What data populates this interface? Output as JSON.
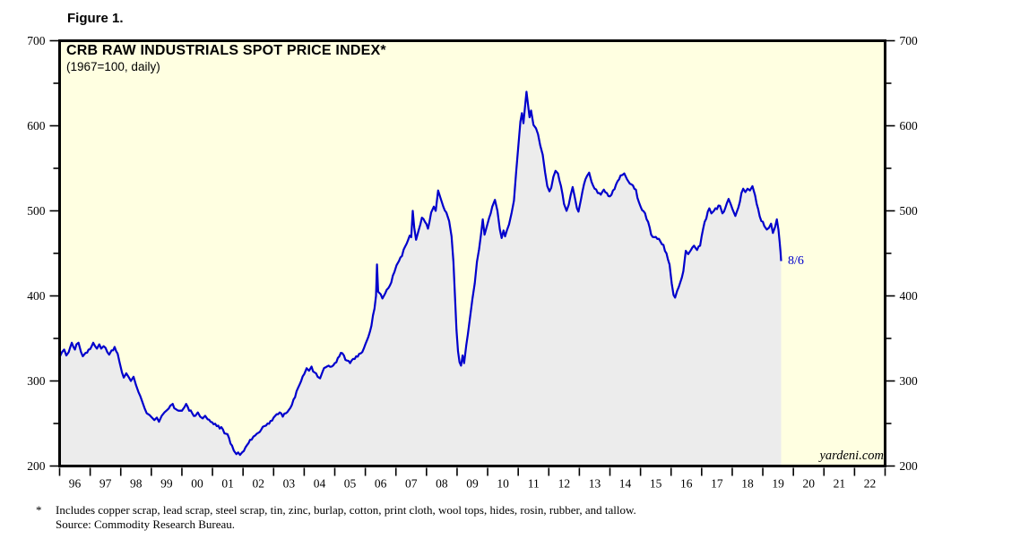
{
  "figure_label": "Figure 1.",
  "chart": {
    "title": "CRB RAW INDUSTRIALS SPOT PRICE INDEX*",
    "subtitle": "(1967=100, daily)",
    "watermark": "yardeni.com",
    "end_label": "8/6",
    "colors": {
      "plot_background": "#FFFFE1",
      "area_fill": "#ECECEC",
      "line": "#0000CC",
      "axis": "#000000",
      "end_label": "#0000CC"
    }
  },
  "footnote": {
    "marker": "*",
    "line1": "Includes copper scrap, lead scrap, steel scrap, tin, zinc, burlap, cotton, print cloth, wool tops, hides, rosin, rubber, and tallow.",
    "line2": "Source: Commodity Research Bureau."
  },
  "chart_data": {
    "type": "area",
    "title": "CRB RAW INDUSTRIALS SPOT PRICE INDEX*",
    "subtitle": "(1967=100, daily)",
    "xlabel": "",
    "ylabel": "",
    "ylim": [
      200,
      700
    ],
    "y_major_ticks": [
      200,
      300,
      400,
      500,
      600,
      700
    ],
    "y_minor_ticks": [
      250,
      350,
      450,
      550,
      650
    ],
    "x_range_years": [
      1996,
      2023
    ],
    "x_tick_labels": [
      "96",
      "97",
      "98",
      "99",
      "00",
      "01",
      "02",
      "03",
      "04",
      "05",
      "06",
      "07",
      "08",
      "09",
      "10",
      "11",
      "12",
      "13",
      "14",
      "15",
      "16",
      "17",
      "18",
      "19",
      "20",
      "21",
      "22"
    ],
    "grid": false,
    "legend": "none",
    "last_point_label": "8/6",
    "series": [
      {
        "name": "CRB Raw Industrials Spot Price Index",
        "points": [
          [
            1996.0,
            328
          ],
          [
            1996.08,
            334
          ],
          [
            1996.15,
            337
          ],
          [
            1996.22,
            330
          ],
          [
            1996.3,
            334
          ],
          [
            1996.4,
            345
          ],
          [
            1996.45,
            340
          ],
          [
            1996.5,
            337
          ],
          [
            1996.55,
            343
          ],
          [
            1996.62,
            345
          ],
          [
            1996.7,
            334
          ],
          [
            1996.76,
            329
          ],
          [
            1996.85,
            333
          ],
          [
            1996.95,
            337
          ],
          [
            1997.05,
            341
          ],
          [
            1997.1,
            345
          ],
          [
            1997.16,
            341
          ],
          [
            1997.22,
            338
          ],
          [
            1997.3,
            343
          ],
          [
            1997.36,
            338
          ],
          [
            1997.44,
            341
          ],
          [
            1997.5,
            339
          ],
          [
            1997.56,
            334
          ],
          [
            1997.62,
            331
          ],
          [
            1997.7,
            336
          ],
          [
            1997.8,
            340
          ],
          [
            1997.9,
            332
          ],
          [
            1997.96,
            322
          ],
          [
            1998.04,
            310
          ],
          [
            1998.1,
            304
          ],
          [
            1998.18,
            309
          ],
          [
            1998.27,
            304
          ],
          [
            1998.33,
            300
          ],
          [
            1998.42,
            305
          ],
          [
            1998.5,
            295
          ],
          [
            1998.58,
            287
          ],
          [
            1998.64,
            282
          ],
          [
            1998.7,
            276
          ],
          [
            1998.78,
            268
          ],
          [
            1998.85,
            262
          ],
          [
            1998.94,
            260
          ],
          [
            1999.02,
            257
          ],
          [
            1999.1,
            254
          ],
          [
            1999.18,
            257
          ],
          [
            1999.25,
            252
          ],
          [
            1999.34,
            259
          ],
          [
            1999.43,
            263
          ],
          [
            1999.52,
            266
          ],
          [
            1999.62,
            271
          ],
          [
            1999.7,
            273
          ],
          [
            1999.8,
            267
          ],
          [
            1999.9,
            265
          ],
          [
            2000.0,
            265
          ],
          [
            2000.08,
            269
          ],
          [
            2000.14,
            273
          ],
          [
            2000.24,
            265
          ],
          [
            2000.34,
            262
          ],
          [
            2000.44,
            259
          ],
          [
            2000.52,
            263
          ],
          [
            2000.6,
            258
          ],
          [
            2000.68,
            256
          ],
          [
            2000.76,
            259
          ],
          [
            2000.84,
            255
          ],
          [
            2000.94,
            252
          ],
          [
            2001.04,
            249
          ],
          [
            2001.14,
            247
          ],
          [
            2001.24,
            244
          ],
          [
            2001.34,
            243
          ],
          [
            2001.44,
            238
          ],
          [
            2001.54,
            233
          ],
          [
            2001.64,
            224
          ],
          [
            2001.7,
            218
          ],
          [
            2001.78,
            214
          ],
          [
            2001.84,
            216
          ],
          [
            2001.9,
            213
          ],
          [
            2001.97,
            216
          ],
          [
            2002.08,
            222
          ],
          [
            2002.18,
            227
          ],
          [
            2002.28,
            231
          ],
          [
            2002.4,
            236
          ],
          [
            2002.5,
            239
          ],
          [
            2002.6,
            243
          ],
          [
            2002.7,
            247
          ],
          [
            2002.8,
            250
          ],
          [
            2002.9,
            253
          ],
          [
            2003.0,
            257
          ],
          [
            2003.1,
            261
          ],
          [
            2003.2,
            263
          ],
          [
            2003.3,
            258
          ],
          [
            2003.4,
            262
          ],
          [
            2003.5,
            266
          ],
          [
            2003.6,
            272
          ],
          [
            2003.7,
            281
          ],
          [
            2003.8,
            292
          ],
          [
            2003.9,
            300
          ],
          [
            2004.0,
            308
          ],
          [
            2004.08,
            315
          ],
          [
            2004.16,
            312
          ],
          [
            2004.24,
            317
          ],
          [
            2004.34,
            310
          ],
          [
            2004.44,
            305
          ],
          [
            2004.52,
            303
          ],
          [
            2004.6,
            311
          ],
          [
            2004.7,
            316
          ],
          [
            2004.8,
            318
          ],
          [
            2004.9,
            317
          ],
          [
            2005.0,
            321
          ],
          [
            2005.1,
            327
          ],
          [
            2005.2,
            333
          ],
          [
            2005.3,
            330
          ],
          [
            2005.4,
            324
          ],
          [
            2005.5,
            321
          ],
          [
            2005.6,
            326
          ],
          [
            2005.7,
            329
          ],
          [
            2005.8,
            332
          ],
          [
            2005.9,
            334
          ],
          [
            2006.0,
            343
          ],
          [
            2006.1,
            352
          ],
          [
            2006.2,
            365
          ],
          [
            2006.3,
            385
          ],
          [
            2006.35,
            400
          ],
          [
            2006.38,
            437
          ],
          [
            2006.42,
            405
          ],
          [
            2006.5,
            402
          ],
          [
            2006.56,
            397
          ],
          [
            2006.65,
            403
          ],
          [
            2006.75,
            409
          ],
          [
            2006.85,
            416
          ],
          [
            2006.95,
            428
          ],
          [
            2007.02,
            436
          ],
          [
            2007.1,
            441
          ],
          [
            2007.2,
            447
          ],
          [
            2007.3,
            458
          ],
          [
            2007.4,
            466
          ],
          [
            2007.45,
            471
          ],
          [
            2007.5,
            469
          ],
          [
            2007.55,
            500
          ],
          [
            2007.6,
            480
          ],
          [
            2007.66,
            466
          ],
          [
            2007.75,
            478
          ],
          [
            2007.85,
            492
          ],
          [
            2007.95,
            487
          ],
          [
            2008.05,
            479
          ],
          [
            2008.15,
            498
          ],
          [
            2008.24,
            505
          ],
          [
            2008.3,
            500
          ],
          [
            2008.38,
            524
          ],
          [
            2008.45,
            516
          ],
          [
            2008.55,
            505
          ],
          [
            2008.65,
            498
          ],
          [
            2008.74,
            488
          ],
          [
            2008.82,
            470
          ],
          [
            2008.88,
            440
          ],
          [
            2008.93,
            400
          ],
          [
            2008.98,
            360
          ],
          [
            2009.03,
            335
          ],
          [
            2009.08,
            322
          ],
          [
            2009.13,
            318
          ],
          [
            2009.18,
            330
          ],
          [
            2009.23,
            321
          ],
          [
            2009.3,
            342
          ],
          [
            2009.4,
            368
          ],
          [
            2009.5,
            396
          ],
          [
            2009.58,
            415
          ],
          [
            2009.65,
            440
          ],
          [
            2009.72,
            455
          ],
          [
            2009.78,
            472
          ],
          [
            2009.84,
            490
          ],
          [
            2009.9,
            472
          ],
          [
            2009.96,
            480
          ],
          [
            2010.05,
            492
          ],
          [
            2010.15,
            505
          ],
          [
            2010.24,
            513
          ],
          [
            2010.32,
            500
          ],
          [
            2010.4,
            478
          ],
          [
            2010.46,
            468
          ],
          [
            2010.52,
            477
          ],
          [
            2010.57,
            470
          ],
          [
            2010.63,
            477
          ],
          [
            2010.7,
            484
          ],
          [
            2010.78,
            497
          ],
          [
            2010.86,
            512
          ],
          [
            2010.93,
            545
          ],
          [
            2011.0,
            575
          ],
          [
            2011.07,
            605
          ],
          [
            2011.12,
            615
          ],
          [
            2011.17,
            603
          ],
          [
            2011.22,
            622
          ],
          [
            2011.27,
            640
          ],
          [
            2011.32,
            625
          ],
          [
            2011.37,
            610
          ],
          [
            2011.42,
            618
          ],
          [
            2011.5,
            601
          ],
          [
            2011.58,
            597
          ],
          [
            2011.65,
            590
          ],
          [
            2011.72,
            577
          ],
          [
            2011.8,
            566
          ],
          [
            2011.88,
            545
          ],
          [
            2011.95,
            529
          ],
          [
            2012.02,
            523
          ],
          [
            2012.08,
            527
          ],
          [
            2012.15,
            540
          ],
          [
            2012.22,
            547
          ],
          [
            2012.3,
            544
          ],
          [
            2012.4,
            529
          ],
          [
            2012.5,
            508
          ],
          [
            2012.58,
            500
          ],
          [
            2012.65,
            507
          ],
          [
            2012.72,
            519
          ],
          [
            2012.78,
            528
          ],
          [
            2012.85,
            516
          ],
          [
            2012.92,
            503
          ],
          [
            2012.97,
            499
          ],
          [
            2013.05,
            513
          ],
          [
            2013.15,
            531
          ],
          [
            2013.25,
            541
          ],
          [
            2013.32,
            545
          ],
          [
            2013.4,
            534
          ],
          [
            2013.5,
            526
          ],
          [
            2013.6,
            521
          ],
          [
            2013.7,
            519
          ],
          [
            2013.8,
            525
          ],
          [
            2013.9,
            521
          ],
          [
            2014.0,
            517
          ],
          [
            2014.1,
            524
          ],
          [
            2014.2,
            531
          ],
          [
            2014.3,
            537
          ],
          [
            2014.4,
            542
          ],
          [
            2014.47,
            544
          ],
          [
            2014.56,
            537
          ],
          [
            2014.65,
            532
          ],
          [
            2014.75,
            530
          ],
          [
            2014.85,
            525
          ],
          [
            2014.95,
            510
          ],
          [
            2015.05,
            501
          ],
          [
            2015.15,
            497
          ],
          [
            2015.25,
            487
          ],
          [
            2015.35,
            472
          ],
          [
            2015.45,
            469
          ],
          [
            2015.55,
            467
          ],
          [
            2015.65,
            464
          ],
          [
            2015.75,
            460
          ],
          [
            2015.85,
            450
          ],
          [
            2015.95,
            437
          ],
          [
            2016.02,
            415
          ],
          [
            2016.08,
            401
          ],
          [
            2016.13,
            398
          ],
          [
            2016.2,
            406
          ],
          [
            2016.3,
            416
          ],
          [
            2016.4,
            429
          ],
          [
            2016.48,
            453
          ],
          [
            2016.56,
            449
          ],
          [
            2016.65,
            454
          ],
          [
            2016.75,
            459
          ],
          [
            2016.85,
            454
          ],
          [
            2016.95,
            459
          ],
          [
            2017.05,
            479
          ],
          [
            2017.15,
            491
          ],
          [
            2017.25,
            503
          ],
          [
            2017.32,
            497
          ],
          [
            2017.4,
            500
          ],
          [
            2017.5,
            502
          ],
          [
            2017.6,
            506
          ],
          [
            2017.68,
            497
          ],
          [
            2017.78,
            504
          ],
          [
            2017.88,
            514
          ],
          [
            2017.95,
            508
          ],
          [
            2018.02,
            501
          ],
          [
            2018.1,
            494
          ],
          [
            2018.2,
            504
          ],
          [
            2018.3,
            521
          ],
          [
            2018.36,
            526
          ],
          [
            2018.43,
            522
          ],
          [
            2018.5,
            526
          ],
          [
            2018.58,
            524
          ],
          [
            2018.66,
            529
          ],
          [
            2018.75,
            518
          ],
          [
            2018.85,
            502
          ],
          [
            2018.95,
            488
          ],
          [
            2019.05,
            482
          ],
          [
            2019.13,
            478
          ],
          [
            2019.2,
            480
          ],
          [
            2019.27,
            485
          ],
          [
            2019.33,
            474
          ],
          [
            2019.4,
            481
          ],
          [
            2019.46,
            490
          ],
          [
            2019.51,
            478
          ],
          [
            2019.55,
            464
          ],
          [
            2019.58,
            452
          ],
          [
            2019.6,
            441
          ]
        ]
      }
    ]
  }
}
